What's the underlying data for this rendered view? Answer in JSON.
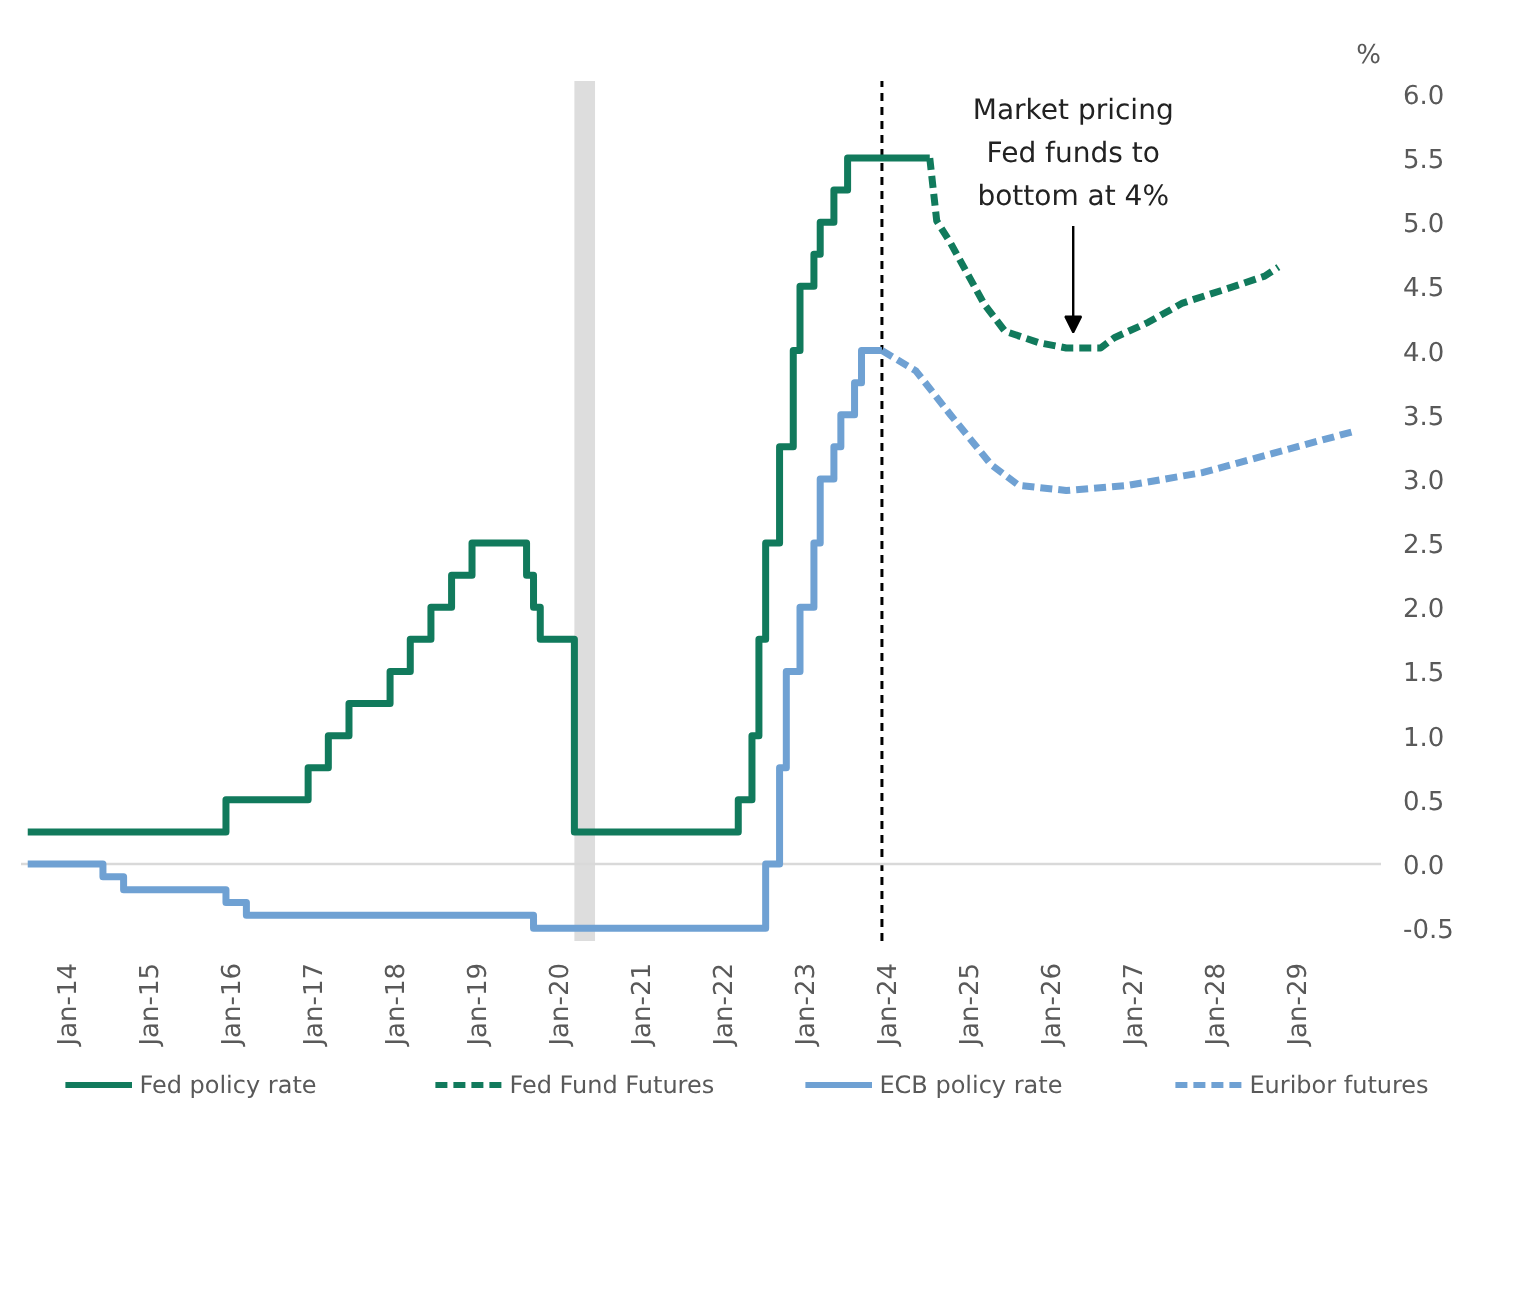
{
  "chart_data": {
    "type": "line",
    "x": [
      "2013-07",
      "2015-12",
      "2016-12",
      "2017-03",
      "2017-06",
      "2017-12",
      "2018-03",
      "2018-06",
      "2018-09",
      "2018-12",
      "2019-08",
      "2019-09",
      "2019-10",
      "2020-03",
      "2022-03",
      "2022-05",
      "2022-06",
      "2022-07",
      "2022-09",
      "2022-11",
      "2022-12",
      "2023-02",
      "2023-03",
      "2023-05",
      "2023-07",
      "2024-07"
    ],
    "series": [
      {
        "name": "Fed policy rate",
        "type": "step",
        "color": "#117a5c",
        "line_style": "solid",
        "values": [
          0.25,
          0.5,
          0.75,
          1.0,
          1.25,
          1.5,
          1.75,
          2.0,
          2.25,
          2.5,
          2.25,
          2.0,
          1.75,
          0.25,
          0.5,
          1.0,
          1.75,
          2.5,
          3.25,
          4.0,
          4.5,
          4.75,
          5.0,
          5.25,
          5.5,
          5.5
        ]
      },
      {
        "name": "Fed Fund Futures",
        "color": "#117a5c",
        "line_style": "dashed",
        "x": [
          "2024-07",
          "2024-08",
          "2024-10",
          "2025-03",
          "2025-06",
          "2025-11",
          "2026-03",
          "2026-08",
          "2026-10",
          "2027-03",
          "2027-08",
          "2028-03",
          "2028-08",
          "2028-10"
        ],
        "values": [
          5.5,
          5.01,
          4.84,
          4.36,
          4.15,
          4.06,
          4.02,
          4.02,
          4.1,
          4.22,
          4.37,
          4.49,
          4.58,
          4.65
        ]
      },
      {
        "name": "ECB policy rate",
        "type": "step",
        "color": "#6fa1d3",
        "line_style": "solid",
        "x": [
          "2013-07",
          "2014-06",
          "2014-09",
          "2015-12",
          "2016-03",
          "2019-09",
          "2022-07",
          "2022-09",
          "2022-10",
          "2022-12",
          "2023-02",
          "2023-03",
          "2023-05",
          "2023-06",
          "2023-08",
          "2023-09",
          "2023-12"
        ],
        "values": [
          0.0,
          -0.1,
          -0.2,
          -0.3,
          -0.4,
          -0.5,
          0.0,
          0.75,
          1.5,
          2.0,
          2.5,
          3.0,
          3.25,
          3.5,
          3.75,
          4.0,
          4.0
        ]
      },
      {
        "name": "Euribor futures",
        "color": "#6fa1d3",
        "line_style": "dashed",
        "x": [
          "2023-12",
          "2024-05",
          "2024-10",
          "2025-04",
          "2025-08",
          "2026-03",
          "2026-12",
          "2027-11",
          "2028-10",
          "2029-09"
        ],
        "values": [
          4.0,
          3.84,
          3.5,
          3.11,
          2.95,
          2.91,
          2.95,
          3.05,
          3.21,
          3.37
        ]
      }
    ],
    "ylabel": "%",
    "xlim": [
      "2013-06",
      "2030-01"
    ],
    "xticks": [
      {
        "value": "2014-01",
        "label": "Jan-14"
      },
      {
        "value": "2015-01",
        "label": "Jan-15"
      },
      {
        "value": "2016-01",
        "label": "Jan-16"
      },
      {
        "value": "2017-01",
        "label": "Jan-17"
      },
      {
        "value": "2018-01",
        "label": "Jan-18"
      },
      {
        "value": "2019-01",
        "label": "Jan-19"
      },
      {
        "value": "2020-01",
        "label": "Jan-20"
      },
      {
        "value": "2021-01",
        "label": "Jan-21"
      },
      {
        "value": "2022-01",
        "label": "Jan-22"
      },
      {
        "value": "2023-01",
        "label": "Jan-23"
      },
      {
        "value": "2024-01",
        "label": "Jan-24"
      },
      {
        "value": "2025-01",
        "label": "Jan-25"
      },
      {
        "value": "2026-01",
        "label": "Jan-26"
      },
      {
        "value": "2027-01",
        "label": "Jan-27"
      },
      {
        "value": "2028-01",
        "label": "Jan-28"
      },
      {
        "value": "2029-01",
        "label": "Jan-29"
      }
    ],
    "ylim": [
      -0.6,
      6.1
    ],
    "yticks": [
      {
        "value": -0.5,
        "label": "-0.5"
      },
      {
        "value": 0,
        "label": "0.0"
      },
      {
        "value": 0.5,
        "label": "0.5"
      },
      {
        "value": 1,
        "label": "1.0"
      },
      {
        "value": 1.5,
        "label": "1.5"
      },
      {
        "value": 2,
        "label": "2.0"
      },
      {
        "value": 2.5,
        "label": "2.5"
      },
      {
        "value": 3,
        "label": "3.0"
      },
      {
        "value": 3.5,
        "label": "3.5"
      },
      {
        "value": 4,
        "label": "4.0"
      },
      {
        "value": 4.5,
        "label": "4.5"
      },
      {
        "value": 5,
        "label": "5.0"
      },
      {
        "value": 5.5,
        "label": "5.5"
      },
      {
        "value": 6,
        "label": "6.0"
      }
    ],
    "ref_lines": [
      {
        "axis": "x",
        "value": "2023-12",
        "color": "#000000",
        "line_style": "dashed"
      },
      {
        "axis": "y",
        "value": 0,
        "color": "#d9d9d9",
        "line_style": "solid"
      }
    ],
    "bands": [
      {
        "axis": "x",
        "from": "2020-03",
        "to": "2020-06",
        "color": "#dddddd"
      }
    ],
    "annotations": [
      {
        "text": "Market pricing\nFed funds to\nbottom at 4%",
        "x": "2026-04",
        "y": 4.02
      }
    ],
    "grid": false,
    "legend": "bottom",
    "marker": "none"
  }
}
